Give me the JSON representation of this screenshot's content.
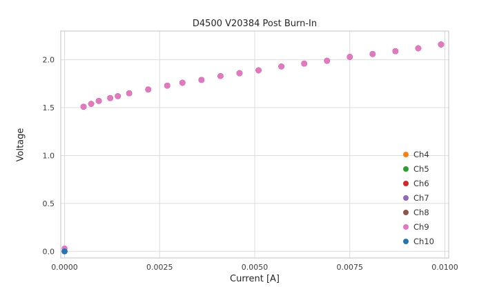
{
  "chart_data": {
    "type": "scatter",
    "title": "D4500 V20384 Post Burn-In",
    "xlabel": "Current [A]",
    "ylabel": "Voltage",
    "xlim": [
      -0.0001,
      0.0101
    ],
    "ylim": [
      -0.07,
      2.3
    ],
    "xticks": [
      0.0,
      0.0025,
      0.005,
      0.0075,
      0.01
    ],
    "xtick_labels": [
      "0.0000",
      "0.0025",
      "0.0050",
      "0.0075",
      "0.0100"
    ],
    "yticks": [
      0.0,
      0.5,
      1.0,
      1.5,
      2.0
    ],
    "ytick_labels": [
      "0.0",
      "0.5",
      "1.0",
      "1.5",
      "2.0"
    ],
    "grid": true,
    "grid_color": "#dcdcdc",
    "border_color": "#cccccc",
    "text_color": "#3b3b3b",
    "legend_position": "lower right",
    "x": [
      0.0,
      0.0005,
      0.0007,
      0.0009,
      0.0012,
      0.0014,
      0.0017,
      0.0022,
      0.0027,
      0.0031,
      0.0036,
      0.0041,
      0.0046,
      0.0051,
      0.0057,
      0.0063,
      0.0069,
      0.0075,
      0.0081,
      0.0087,
      0.0093,
      0.0099
    ],
    "series": [
      {
        "name": "Ch4",
        "color": "#ff7f0e",
        "values": [
          0.0,
          1.51,
          1.54,
          1.57,
          1.6,
          1.62,
          1.65,
          1.69,
          1.73,
          1.76,
          1.79,
          1.83,
          1.86,
          1.89,
          1.93,
          1.96,
          1.99,
          2.03,
          2.06,
          2.09,
          2.12,
          2.16
        ]
      },
      {
        "name": "Ch5",
        "color": "#2ca02c",
        "values": [
          0.0,
          1.51,
          1.54,
          1.57,
          1.6,
          1.62,
          1.65,
          1.69,
          1.73,
          1.76,
          1.79,
          1.83,
          1.86,
          1.89,
          1.93,
          1.96,
          1.99,
          2.03,
          2.06,
          2.09,
          2.12,
          2.16
        ]
      },
      {
        "name": "Ch6",
        "color": "#d62728",
        "values": [
          0.0,
          1.51,
          1.54,
          1.57,
          1.6,
          1.62,
          1.65,
          1.69,
          1.73,
          1.76,
          1.79,
          1.83,
          1.86,
          1.89,
          1.93,
          1.96,
          1.99,
          2.03,
          2.06,
          2.09,
          2.12,
          2.16
        ]
      },
      {
        "name": "Ch7",
        "color": "#9467bd",
        "values": [
          0.0,
          1.51,
          1.54,
          1.57,
          1.6,
          1.62,
          1.65,
          1.69,
          1.73,
          1.76,
          1.79,
          1.83,
          1.86,
          1.89,
          1.93,
          1.96,
          1.99,
          2.03,
          2.06,
          2.09,
          2.12,
          2.16
        ]
      },
      {
        "name": "Ch8",
        "color": "#8c564b",
        "values": [
          0.0,
          1.51,
          1.54,
          1.57,
          1.6,
          1.62,
          1.65,
          1.69,
          1.73,
          1.76,
          1.79,
          1.83,
          1.86,
          1.89,
          1.93,
          1.96,
          1.99,
          2.03,
          2.06,
          2.09,
          2.12,
          2.16
        ]
      },
      {
        "name": "Ch9",
        "color": "#e377c2",
        "values": [
          0.03,
          1.51,
          1.54,
          1.57,
          1.6,
          1.62,
          1.65,
          1.69,
          1.73,
          1.76,
          1.79,
          1.83,
          1.86,
          1.89,
          1.93,
          1.96,
          1.99,
          2.03,
          2.06,
          2.09,
          2.12,
          2.16
        ]
      },
      {
        "name": "Ch10",
        "color": "#1f77b4",
        "x": [
          0.0
        ],
        "values": [
          0.0
        ]
      }
    ]
  }
}
